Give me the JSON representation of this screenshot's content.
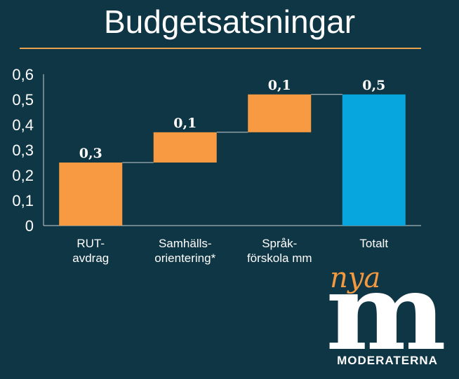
{
  "title": "Budgetsatsningar",
  "colors": {
    "background": "#0f3645",
    "rule": "#e8a24f",
    "increase": "#f79a42",
    "total": "#08a6df",
    "connector": "#c8d0d4",
    "axis": "#c8d0d4"
  },
  "chart_data": {
    "type": "bar",
    "subtype": "waterfall",
    "categories": [
      [
        "RUT-",
        "avdrag"
      ],
      [
        "Samhälls-",
        "orientering*"
      ],
      [
        "Språk-",
        "förskola mm"
      ],
      [
        "Totalt"
      ]
    ],
    "values": [
      0.25,
      0.12,
      0.15,
      0.52
    ],
    "data_labels": [
      "0,3",
      "0,1",
      "0,1",
      "0,5"
    ],
    "is_total": [
      false,
      false,
      false,
      true
    ],
    "yticks": [
      "0",
      "0,1",
      "0,2",
      "0,3",
      "0,4",
      "0,5",
      "0,6"
    ],
    "ylim": [
      0,
      0.6
    ],
    "grid": false,
    "legend": "none"
  },
  "logo": {
    "script_text": "nya",
    "letter": "m",
    "wordmark": "MODERATERNA"
  }
}
